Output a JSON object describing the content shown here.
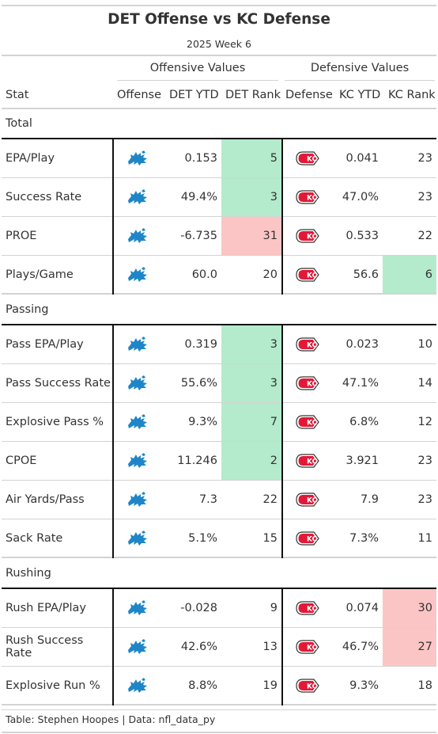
{
  "title": "DET Offense vs KC Defense",
  "subtitle": "2025 Week 6",
  "spanners": {
    "offensive": "Offensive Values",
    "defensive": "Defensive Values"
  },
  "columns": {
    "stat": "Stat",
    "offense": "Offense",
    "det_ytd": "DET YTD",
    "det_rank": "DET Rank",
    "defense": "Defense",
    "kc_ytd": "KC YTD",
    "kc_rank": "KC Rank"
  },
  "colors": {
    "good": "#b3ebcc",
    "bad": "#fcc5c5",
    "lions_blue": "#1e86c8",
    "chiefs_red": "#e31837",
    "rule": "#d3d3d3"
  },
  "icons": {
    "offense": "detroit-lions-logo",
    "defense": "kansas-city-chiefs-logo"
  },
  "groups": [
    {
      "label": "Total",
      "rows": [
        {
          "stat": "EPA/Play",
          "det_ytd": "0.153",
          "det_rank": "5",
          "det_hl": "good",
          "kc_ytd": "0.041",
          "kc_rank": "23",
          "kc_hl": ""
        },
        {
          "stat": "Success Rate",
          "det_ytd": "49.4%",
          "det_rank": "3",
          "det_hl": "good",
          "kc_ytd": "47.0%",
          "kc_rank": "23",
          "kc_hl": ""
        },
        {
          "stat": "PROE",
          "det_ytd": "-6.735",
          "det_rank": "31",
          "det_hl": "bad",
          "kc_ytd": "0.533",
          "kc_rank": "22",
          "kc_hl": ""
        },
        {
          "stat": "Plays/Game",
          "det_ytd": "60.0",
          "det_rank": "20",
          "det_hl": "",
          "kc_ytd": "56.6",
          "kc_rank": "6",
          "kc_hl": "good"
        }
      ]
    },
    {
      "label": "Passing",
      "rows": [
        {
          "stat": "Pass EPA/Play",
          "det_ytd": "0.319",
          "det_rank": "3",
          "det_hl": "good",
          "kc_ytd": "0.023",
          "kc_rank": "10",
          "kc_hl": ""
        },
        {
          "stat": "Pass Success Rate",
          "det_ytd": "55.6%",
          "det_rank": "3",
          "det_hl": "good",
          "kc_ytd": "47.1%",
          "kc_rank": "14",
          "kc_hl": ""
        },
        {
          "stat": "Explosive Pass %",
          "det_ytd": "9.3%",
          "det_rank": "7",
          "det_hl": "good",
          "kc_ytd": "6.8%",
          "kc_rank": "12",
          "kc_hl": ""
        },
        {
          "stat": "CPOE",
          "det_ytd": "11.246",
          "det_rank": "2",
          "det_hl": "good",
          "kc_ytd": "3.921",
          "kc_rank": "23",
          "kc_hl": ""
        },
        {
          "stat": "Air Yards/Pass",
          "det_ytd": "7.3",
          "det_rank": "22",
          "det_hl": "",
          "kc_ytd": "7.9",
          "kc_rank": "23",
          "kc_hl": ""
        },
        {
          "stat": "Sack Rate",
          "det_ytd": "5.1%",
          "det_rank": "15",
          "det_hl": "",
          "kc_ytd": "7.3%",
          "kc_rank": "11",
          "kc_hl": ""
        }
      ]
    },
    {
      "label": "Rushing",
      "rows": [
        {
          "stat": "Rush EPA/Play",
          "det_ytd": "-0.028",
          "det_rank": "9",
          "det_hl": "",
          "kc_ytd": "0.074",
          "kc_rank": "30",
          "kc_hl": "bad"
        },
        {
          "stat": "Rush Success Rate",
          "det_ytd": "42.6%",
          "det_rank": "13",
          "det_hl": "",
          "kc_ytd": "46.7%",
          "kc_rank": "27",
          "kc_hl": "bad"
        },
        {
          "stat": "Explosive Run %",
          "det_ytd": "8.8%",
          "det_rank": "19",
          "det_hl": "",
          "kc_ytd": "9.3%",
          "kc_rank": "18",
          "kc_hl": ""
        }
      ]
    }
  ],
  "source": "Table: Stephen Hoopes | Data: nfl_data_py"
}
